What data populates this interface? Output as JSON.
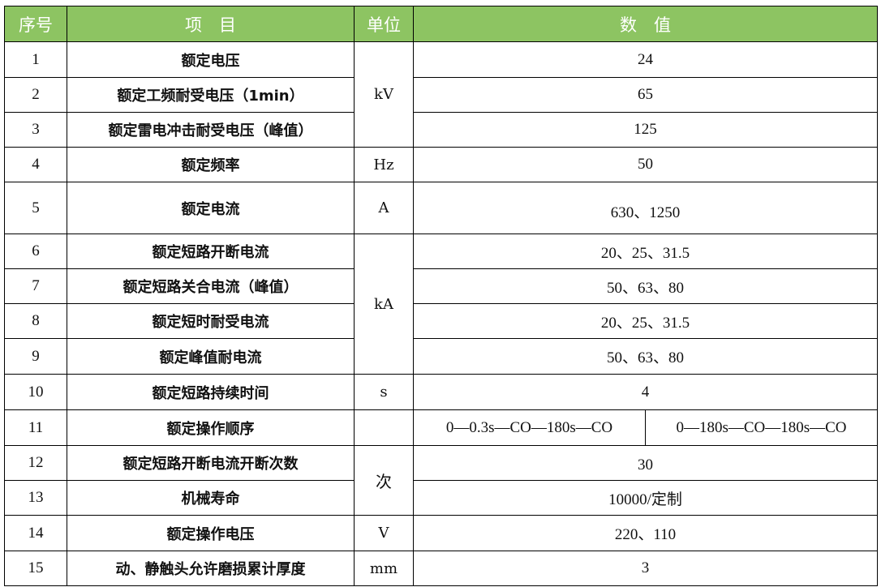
{
  "header": {
    "no": "序号",
    "item": "项　目",
    "unit": "单位",
    "value": "数　值"
  },
  "colors": {
    "header_bg": "#8dc462",
    "header_text": "#ffffff"
  },
  "rows": [
    {
      "no": "1",
      "item": "额定电压",
      "unit": "kV",
      "value": "24"
    },
    {
      "no": "2",
      "item": "额定工频耐受电压（1min）",
      "value": "65"
    },
    {
      "no": "3",
      "item": "额定雷电冲击耐受电压（峰值）",
      "value": "125"
    },
    {
      "no": "4",
      "item": "额定频率",
      "unit": "Hz",
      "value": "50"
    },
    {
      "no": "5",
      "item": "额定电流",
      "unit": "A",
      "value": "630、1250"
    },
    {
      "no": "6",
      "item": "额定短路开断电流",
      "unit": "kA",
      "value": "20、25、31.5"
    },
    {
      "no": "7",
      "item": "额定短路关合电流（峰值）",
      "value": "50、63、80"
    },
    {
      "no": "8",
      "item": "额定短时耐受电流",
      "value": "20、25、31.5"
    },
    {
      "no": "9",
      "item": "额定峰值耐电流",
      "value": "50、63、80"
    },
    {
      "no": "10",
      "item": "额定短路持续时间",
      "unit": "s",
      "value": "4"
    },
    {
      "no": "11",
      "item": "额定操作顺序",
      "unit": "",
      "value_a": "0—0.3s—CO—180s—CO",
      "value_b": "0—180s—CO—180s—CO"
    },
    {
      "no": "12",
      "item": "额定短路开断电流开断次数",
      "unit": "次",
      "value": "30"
    },
    {
      "no": "13",
      "item": "机械寿命",
      "value": "10000/定制"
    },
    {
      "no": "14",
      "item": "额定操作电压",
      "unit": "V",
      "value": "220、110"
    },
    {
      "no": "15",
      "item": "动、静触头允许磨损累计厚度",
      "unit": "mm",
      "value": "3"
    }
  ]
}
